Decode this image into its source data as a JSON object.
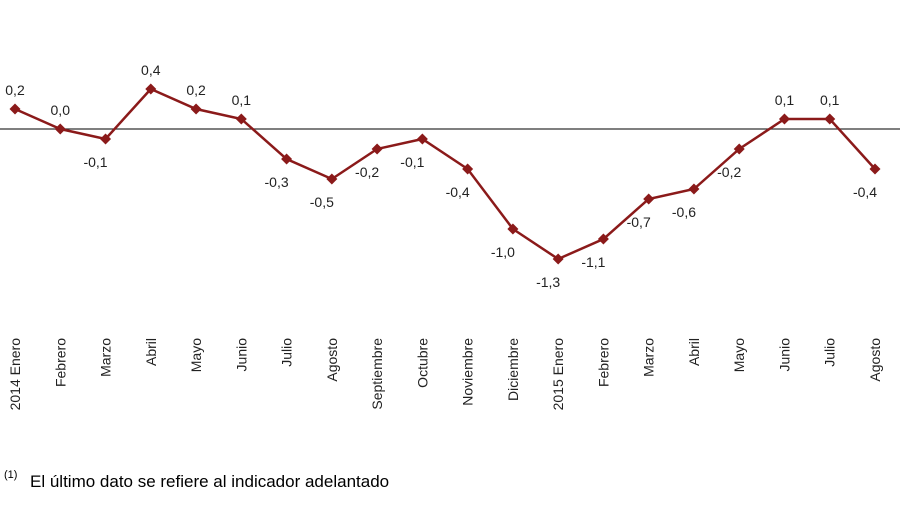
{
  "chart_data": {
    "type": "line",
    "categories": [
      "2014 Enero",
      "Febrero",
      "Marzo",
      "Abril",
      "Mayo",
      "Junio",
      "Julio",
      "Agosto",
      "Septiembre",
      "Octubre",
      "Noviembre",
      "Diciembre",
      "2015 Enero",
      "Febrero",
      "Marzo",
      "Abril",
      "Mayo",
      "Junio",
      "Julio",
      "Agosto"
    ],
    "series": [
      {
        "color": "#8b1a1a",
        "values": [
          0.2,
          0.0,
          -0.1,
          0.4,
          0.2,
          0.1,
          -0.3,
          -0.5,
          -0.2,
          -0.1,
          -0.4,
          -1.0,
          -1.3,
          -1.1,
          -0.7,
          -0.6,
          -0.2,
          0.1,
          0.1,
          -0.4
        ],
        "value_labels": [
          "0,2",
          "0,0",
          "-0,1",
          "0,4",
          "0,2",
          "0,1",
          "-0,3",
          "-0,5",
          "-0,2",
          "-0,1",
          "-0,4",
          "-1,0",
          "-1,3",
          "-1,1",
          "-0,7",
          "-0,6",
          "-0,2",
          "0,1",
          "0,1",
          "-0,4"
        ]
      }
    ],
    "note_marker": "(1)",
    "note": "El último dato se refiere al indicador adelantado"
  }
}
